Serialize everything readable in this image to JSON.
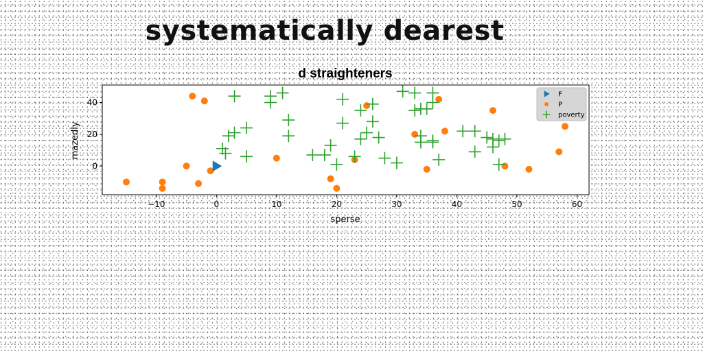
{
  "headline": "systematically dearest",
  "chart_data": {
    "type": "scatter",
    "title": "d straighteners",
    "xlabel": "sperse",
    "ylabel": "mazedly",
    "xlim": [
      -19,
      62
    ],
    "ylim": [
      -18,
      51
    ],
    "xticks": [
      -10,
      0,
      10,
      20,
      30,
      40,
      50,
      60
    ],
    "yticks": [
      0,
      20,
      40
    ],
    "grid": false,
    "legend_position": "top-right",
    "series": [
      {
        "name": "F",
        "marker": "triangle-right",
        "color": "#1f77b4",
        "points": [
          [
            0,
            0
          ]
        ]
      },
      {
        "name": "P",
        "marker": "circle",
        "color": "#ff7f0e",
        "points": [
          [
            -15,
            -10
          ],
          [
            -9,
            -10
          ],
          [
            -9,
            -14
          ],
          [
            -5,
            0
          ],
          [
            -4,
            44
          ],
          [
            -2,
            41
          ],
          [
            -3,
            -11
          ],
          [
            -1,
            -3
          ],
          [
            10,
            5
          ],
          [
            19,
            -8
          ],
          [
            20,
            -14
          ],
          [
            23,
            4
          ],
          [
            25,
            38
          ],
          [
            33,
            20
          ],
          [
            35,
            -2
          ],
          [
            37,
            42
          ],
          [
            38,
            22
          ],
          [
            46,
            35
          ],
          [
            48,
            0
          ],
          [
            52,
            -2
          ],
          [
            57,
            9
          ],
          [
            58,
            25
          ]
        ]
      },
      {
        "name": "poverty",
        "marker": "plus",
        "color": "#2ca02c",
        "points": [
          [
            1,
            11
          ],
          [
            1.5,
            8
          ],
          [
            2,
            19
          ],
          [
            3,
            21
          ],
          [
            3,
            44
          ],
          [
            5,
            24
          ],
          [
            5,
            6
          ],
          [
            9,
            40
          ],
          [
            9,
            44
          ],
          [
            11,
            46
          ],
          [
            12,
            29
          ],
          [
            12,
            19
          ],
          [
            16,
            7
          ],
          [
            18,
            7
          ],
          [
            19,
            13
          ],
          [
            20,
            1
          ],
          [
            21,
            42
          ],
          [
            21,
            27
          ],
          [
            23,
            6
          ],
          [
            24,
            35
          ],
          [
            24,
            17
          ],
          [
            25,
            21
          ],
          [
            26,
            28
          ],
          [
            26,
            39
          ],
          [
            27,
            18
          ],
          [
            28,
            5
          ],
          [
            30,
            2
          ],
          [
            31,
            47
          ],
          [
            33,
            46
          ],
          [
            33,
            35
          ],
          [
            34,
            19
          ],
          [
            34,
            15
          ],
          [
            34,
            36
          ],
          [
            35,
            36
          ],
          [
            36,
            15
          ],
          [
            36,
            16
          ],
          [
            36,
            40
          ],
          [
            36,
            46
          ],
          [
            37,
            4
          ],
          [
            41,
            22
          ],
          [
            43,
            22
          ],
          [
            43,
            9
          ],
          [
            45,
            18
          ],
          [
            46,
            17
          ],
          [
            46,
            12
          ],
          [
            47,
            16
          ],
          [
            47,
            1
          ],
          [
            48,
            17
          ]
        ]
      }
    ]
  }
}
